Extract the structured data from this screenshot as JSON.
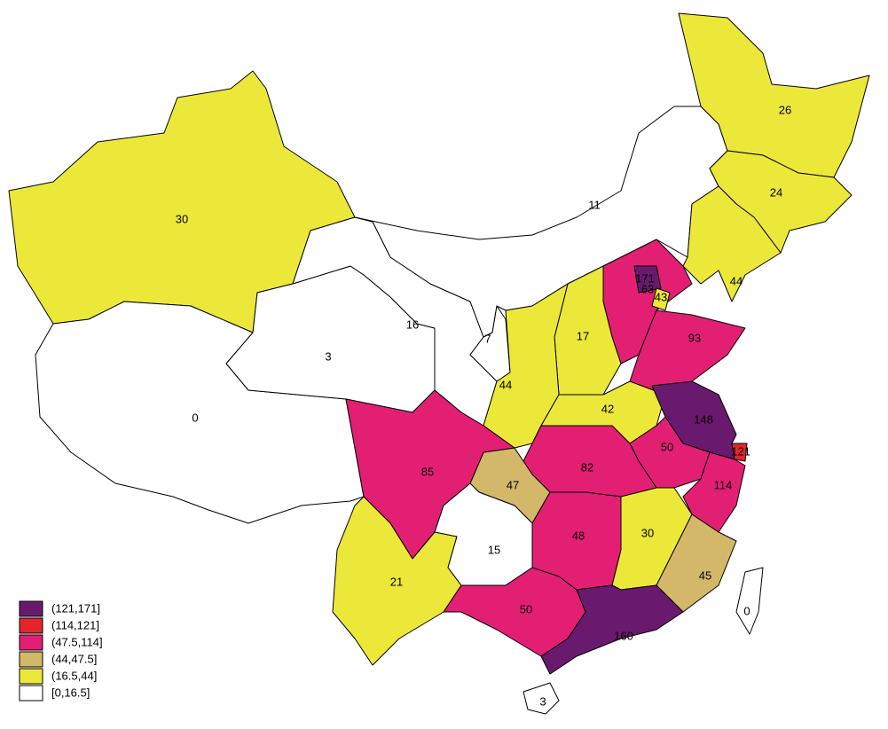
{
  "legend": [
    {
      "label": "(121,171]",
      "color": "#6a1a6e"
    },
    {
      "label": "(114,121]",
      "color": "#e4262c"
    },
    {
      "label": "(47.5,114]",
      "color": "#e31f74"
    },
    {
      "label": "(44,47.5]",
      "color": "#d4b869"
    },
    {
      "label": "(16.5,44]",
      "color": "#ece83a"
    },
    {
      "label": "[0,16.5]",
      "color": "#ffffff"
    }
  ],
  "regions": [
    {
      "value": 30,
      "color": "#ece83a"
    },
    {
      "value": 0,
      "color": "#ffffff"
    },
    {
      "value": 3,
      "color": "#ffffff"
    },
    {
      "value": 16,
      "color": "#ffffff"
    },
    {
      "value": 11,
      "color": "#ffffff"
    },
    {
      "value": 26,
      "color": "#ece83a"
    },
    {
      "value": 24,
      "color": "#ece83a"
    },
    {
      "value": 44,
      "color": "#ece83a"
    },
    {
      "value": 63,
      "color": "#e31f74"
    },
    {
      "value": 171,
      "color": "#6a1a6e"
    },
    {
      "value": 43,
      "color": "#ece83a"
    },
    {
      "value": 17,
      "color": "#ece83a"
    },
    {
      "value": 93,
      "color": "#e31f74"
    },
    {
      "value": 7,
      "color": "#ffffff"
    },
    {
      "value": 44,
      "color": "#ece83a"
    },
    {
      "value": 42,
      "color": "#ece83a"
    },
    {
      "value": 148,
      "color": "#6a1a6e"
    },
    {
      "value": 121,
      "color": "#e4262c"
    },
    {
      "value": 50,
      "color": "#e31f74"
    },
    {
      "value": 114,
      "color": "#e31f74"
    },
    {
      "value": 82,
      "color": "#e31f74"
    },
    {
      "value": 47,
      "color": "#d4b869"
    },
    {
      "value": 85,
      "color": "#e31f74"
    },
    {
      "value": 21,
      "color": "#ece83a"
    },
    {
      "value": 15,
      "color": "#ffffff"
    },
    {
      "value": 48,
      "color": "#e31f74"
    },
    {
      "value": 30,
      "color": "#ece83a"
    },
    {
      "value": 45,
      "color": "#d4b869"
    },
    {
      "value": 50,
      "color": "#e31f74"
    },
    {
      "value": 160,
      "color": "#6a1a6e"
    },
    {
      "value": 3,
      "color": "#ffffff"
    },
    {
      "value": 0,
      "color": "#ffffff"
    }
  ]
}
